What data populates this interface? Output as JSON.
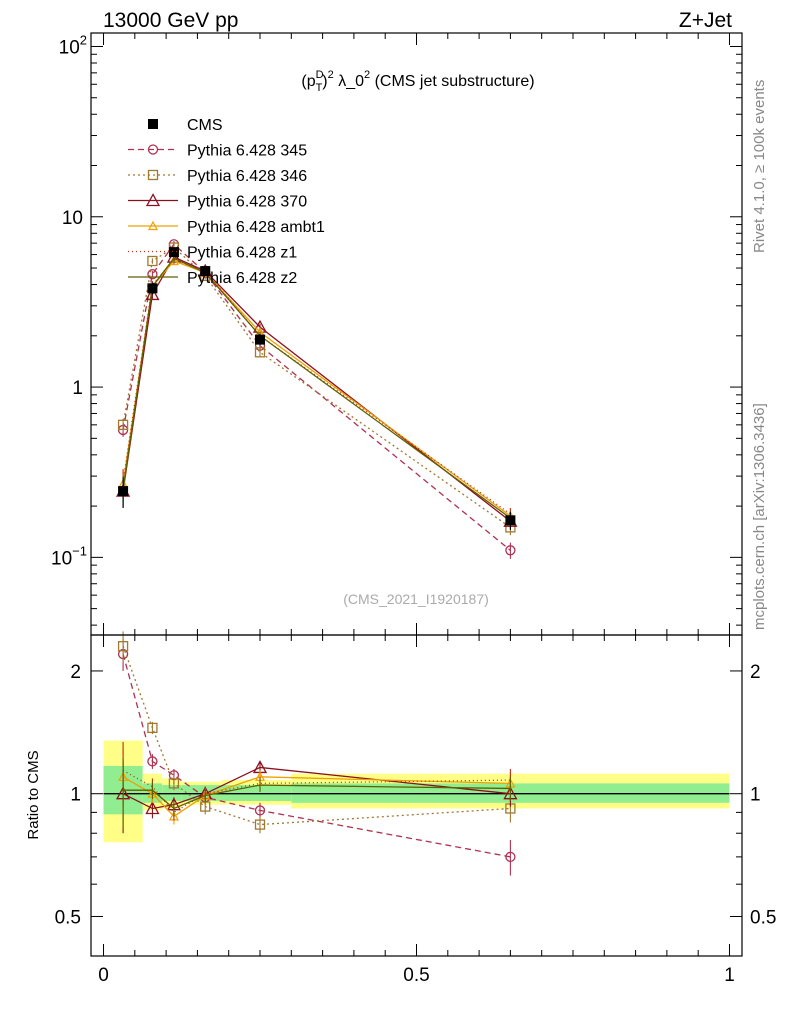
{
  "header": {
    "left": "13000 GeV pp",
    "right": "Z+Jet"
  },
  "side_labels": {
    "rivet": "Rivet 4.1.0, ≥ 100k events",
    "mcplots": "mcplots.cern.ch [arXiv:1306.3436]"
  },
  "colors": {
    "cms": "#000000",
    "p345": "#b03050",
    "p346": "#a07830",
    "p370": "#8b1020",
    "ambt1": "#f0a000",
    "z1": "#c03010",
    "z2": "#606000",
    "band_inner": "#90ee90",
    "band_outer": "#ffff88"
  },
  "chart_data": [
    {
      "type": "line",
      "panel": "main",
      "title": "(p_T^D)^2 λ_0^2 (CMS jet substructure)",
      "title_parts": {
        "p": "(p",
        "sup_d": "D",
        "sub_t": "T",
        "close": ")",
        "sup_2": "2",
        "lambda": " λ_0",
        "sup_2b": "2",
        "rest": " (CMS jet substructure)"
      },
      "watermark": "(CMS_2021_I1920187)",
      "yscale": "log",
      "ylim": [
        0.035,
        120
      ],
      "xlim": [
        -0.02,
        1.02
      ],
      "y_ticks": [
        {
          "value": 0.1,
          "base": "10",
          "exp": "−1"
        },
        {
          "value": 1,
          "base": "1",
          "exp": ""
        },
        {
          "value": 10,
          "base": "10",
          "exp": ""
        },
        {
          "value": 100,
          "base": "10",
          "exp": "2"
        }
      ],
      "x": [
        0.03125,
        0.078125,
        0.1125,
        0.1625,
        0.25,
        0.65
      ],
      "legend_position": "top-left",
      "series": [
        {
          "name": "CMS",
          "marker": "square-filled",
          "dash": "none",
          "values": [
            0.245,
            3.8,
            6.2,
            4.8,
            1.9,
            0.165
          ],
          "errors": [
            0.05,
            0.3,
            0.3,
            0.25,
            0.15,
            0.02
          ]
        },
        {
          "name": "Pythia 6.428 345",
          "marker": "circle",
          "dash": "6,4",
          "values": [
            0.56,
            4.6,
            6.9,
            4.7,
            1.75,
            0.11
          ],
          "errors": [
            0.05,
            0.2,
            0.3,
            0.2,
            0.1,
            0.012
          ]
        },
        {
          "name": "Pythia 6.428 346",
          "marker": "square",
          "dash": "2,3",
          "values": [
            0.6,
            5.5,
            6.6,
            4.5,
            1.6,
            0.15
          ],
          "errors": [
            0.05,
            0.2,
            0.3,
            0.2,
            0.1,
            0.015
          ]
        },
        {
          "name": "Pythia 6.428 370",
          "marker": "triangle",
          "dash": "none",
          "values": [
            0.245,
            3.5,
            5.8,
            4.8,
            2.25,
            0.163
          ],
          "errors": [
            0.05,
            0.2,
            0.3,
            0.2,
            0.1,
            0.015
          ]
        },
        {
          "name": "Pythia 6.428 ambt1",
          "marker": "triangle-small",
          "dash": "none",
          "values": [
            0.27,
            3.9,
            5.5,
            4.7,
            2.1,
            0.175
          ],
          "errors": [
            0.05,
            0.2,
            0.3,
            0.2,
            0.1,
            0.015
          ]
        },
        {
          "name": "Pythia 6.428 z1",
          "marker": "none",
          "dash": "1,3",
          "values": [
            0.28,
            4.0,
            5.6,
            4.8,
            2.0,
            0.18
          ],
          "errors": [
            0.05,
            0.2,
            0.3,
            0.2,
            0.1,
            0.015
          ]
        },
        {
          "name": "Pythia 6.428 z2",
          "marker": "none",
          "dash": "none",
          "values": [
            0.25,
            3.9,
            5.7,
            4.7,
            2.0,
            0.17
          ],
          "errors": [
            0.05,
            0.2,
            0.3,
            0.2,
            0.1,
            0.015
          ]
        }
      ]
    },
    {
      "type": "line",
      "panel": "ratio",
      "ylabel": "Ratio to CMS",
      "yscale": "log",
      "ylim": [
        0.4,
        2.45
      ],
      "xlim": [
        -0.02,
        1.02
      ],
      "y_ticks": [
        {
          "value": 0.5,
          "label": "0.5"
        },
        {
          "value": 1,
          "label": "1"
        },
        {
          "value": 2,
          "label": "2"
        }
      ],
      "x_ticks": [
        {
          "value": 0,
          "label": "0"
        },
        {
          "value": 0.5,
          "label": "0.5"
        },
        {
          "value": 1,
          "label": "1"
        }
      ],
      "x": [
        0.03125,
        0.078125,
        0.1125,
        0.1625,
        0.25,
        0.65
      ],
      "bands": [
        {
          "x0": 0.0,
          "x1": 0.0625,
          "inner": [
            0.89,
            1.17
          ],
          "outer": [
            0.76,
            1.35
          ]
        },
        {
          "x0": 0.0625,
          "x1": 0.09375,
          "inner": [
            0.95,
            1.06
          ],
          "outer": [
            0.91,
            1.12
          ]
        },
        {
          "x0": 0.09375,
          "x1": 0.125,
          "inner": [
            0.96,
            1.05
          ],
          "outer": [
            0.92,
            1.09
          ]
        },
        {
          "x0": 0.125,
          "x1": 0.1875,
          "inner": [
            0.96,
            1.05
          ],
          "outer": [
            0.94,
            1.07
          ]
        },
        {
          "x0": 0.1875,
          "x1": 0.3,
          "inner": [
            0.96,
            1.05
          ],
          "outer": [
            0.94,
            1.08
          ]
        },
        {
          "x0": 0.3,
          "x1": 1.0,
          "inner": [
            0.95,
            1.06
          ],
          "outer": [
            0.92,
            1.12
          ]
        }
      ],
      "series": [
        {
          "name": "Pythia 6.428 345",
          "values": [
            2.2,
            1.2,
            1.11,
            0.98,
            0.91,
            0.7
          ],
          "errors": [
            0.2,
            0.05,
            0.04,
            0.04,
            0.04,
            0.07
          ]
        },
        {
          "name": "Pythia 6.428 346",
          "values": [
            2.3,
            1.45,
            1.06,
            0.93,
            0.84,
            0.92
          ],
          "errors": [
            0.2,
            0.05,
            0.04,
            0.04,
            0.04,
            0.07
          ]
        },
        {
          "name": "Pythia 6.428 370",
          "values": [
            1.0,
            0.92,
            0.94,
            1.0,
            1.16,
            1.0
          ],
          "errors": [
            0.2,
            0.05,
            0.04,
            0.04,
            0.04,
            0.07
          ]
        },
        {
          "name": "Pythia 6.428 ambt1",
          "values": [
            1.1,
            1.0,
            0.88,
            0.99,
            1.1,
            1.06
          ],
          "errors": [
            0.2,
            0.05,
            0.04,
            0.04,
            0.04,
            0.07
          ]
        },
        {
          "name": "Pythia 6.428 z1",
          "values": [
            1.14,
            1.04,
            0.9,
            1.0,
            1.06,
            1.08
          ],
          "errors": [
            0.2,
            0.05,
            0.04,
            0.04,
            0.04,
            0.07
          ]
        },
        {
          "name": "Pythia 6.428 z2",
          "values": [
            1.02,
            1.02,
            0.92,
            0.99,
            1.05,
            1.03
          ],
          "errors": [
            0.2,
            0.05,
            0.04,
            0.04,
            0.04,
            0.07
          ]
        }
      ]
    }
  ]
}
